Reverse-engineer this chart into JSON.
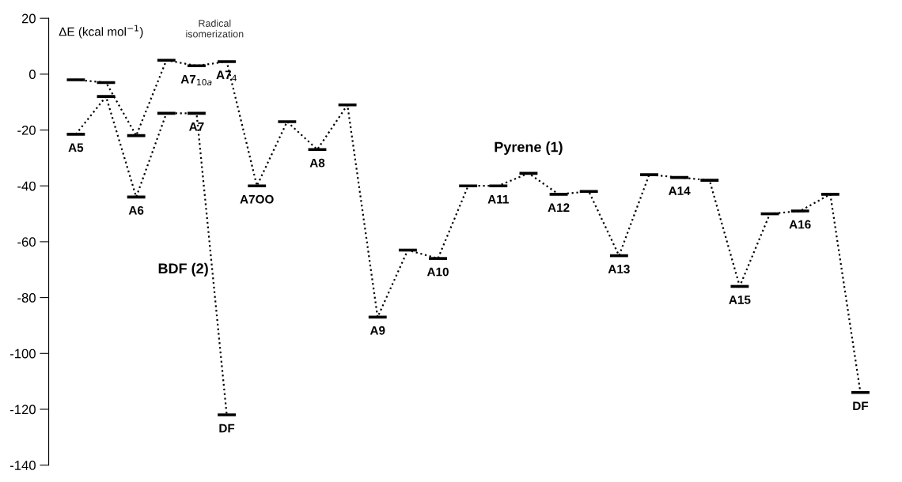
{
  "chart_data": {
    "type": "line",
    "ylabel": "ΔE (kcal mol$^{−1}$)",
    "categories": [
      null,
      null,
      null,
      null,
      null,
      null,
      null,
      null,
      null,
      null,
      null,
      null,
      null,
      null,
      null,
      null,
      null,
      null,
      null,
      null,
      null,
      null,
      null,
      null,
      null,
      null,
      null
    ],
    "series": [
      {
        "name": "Pyrene (1)",
        "color": "#000000",
        "values": [
          -2,
          -3,
          -22,
          5,
          3,
          4.5,
          -40,
          -17,
          -27,
          -11,
          -87,
          -63,
          -66,
          -40,
          -40,
          -35.5,
          -43,
          -42,
          -65,
          -36,
          -37,
          -38,
          -76,
          -50,
          -49,
          -43,
          -114
        ],
        "value_labels": [
          null,
          null,
          null,
          null,
          "A7$_{10a}$",
          "A7$_{4}$",
          "A7OO",
          null,
          "A8",
          null,
          "A9",
          null,
          "A10",
          null,
          "A11",
          null,
          "A12",
          null,
          "A13",
          null,
          "A14",
          null,
          "A15",
          null,
          "A16",
          null,
          "DF"
        ]
      },
      {
        "name": "BDF (2)",
        "color": "#000000",
        "values": [
          -21.5,
          -8,
          -44,
          -14,
          -14,
          -122,
          null,
          null,
          null,
          null,
          null,
          null,
          null,
          null,
          null,
          null,
          null,
          null,
          null,
          null,
          null,
          null,
          null,
          null,
          null,
          null,
          null
        ],
        "value_labels": [
          "A5",
          null,
          "A6",
          null,
          "A7",
          "DF",
          null,
          null,
          null,
          null,
          null,
          null,
          null,
          null,
          null,
          null,
          null,
          null,
          null,
          null,
          null,
          null,
          null,
          null,
          null,
          null,
          null
        ]
      }
    ],
    "annotations": [
      "Radical\nisomerization"
    ],
    "ylim": [
      -140,
      20
    ],
    "yticks": [
      -140,
      -120,
      -100,
      -80,
      -60,
      -40,
      -20,
      0,
      20
    ],
    "line_style": "dotted",
    "grid": false,
    "marker": "none",
    "legend": false
  }
}
